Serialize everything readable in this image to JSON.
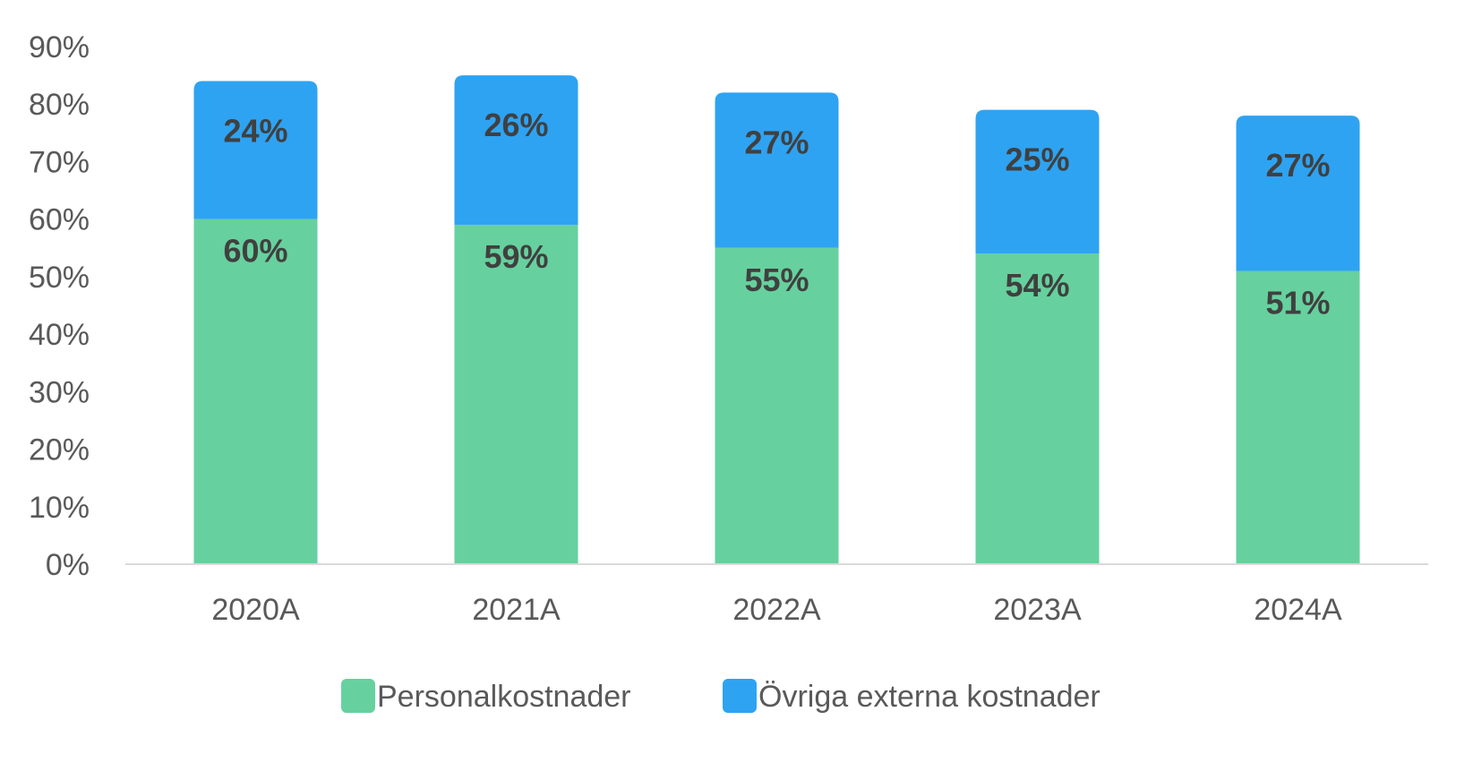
{
  "chart_data": {
    "type": "bar",
    "stacked": true,
    "categories": [
      "2020A",
      "2021A",
      "2022A",
      "2023A",
      "2024A"
    ],
    "series": [
      {
        "name": "Personalkostnader",
        "values": [
          60,
          59,
          55,
          54,
          51
        ],
        "labels": [
          "60%",
          "59%",
          "55%",
          "54%",
          "51%"
        ],
        "color": "#66D19E"
      },
      {
        "name": "Övriga externa kostnader",
        "values": [
          24,
          26,
          27,
          25,
          27
        ],
        "labels": [
          "24%",
          "26%",
          "27%",
          "25%",
          "27%"
        ],
        "color": "#2EA3F2"
      }
    ],
    "y_ticks": [
      "0%",
      "10%",
      "20%",
      "30%",
      "40%",
      "50%",
      "60%",
      "70%",
      "80%",
      "90%"
    ],
    "ylim": [
      0,
      90
    ],
    "grid": false,
    "legend_position": "bottom",
    "colors": {
      "axis": "#D9D9D9",
      "tick_text": "#595959",
      "data_label": "#404040"
    }
  }
}
